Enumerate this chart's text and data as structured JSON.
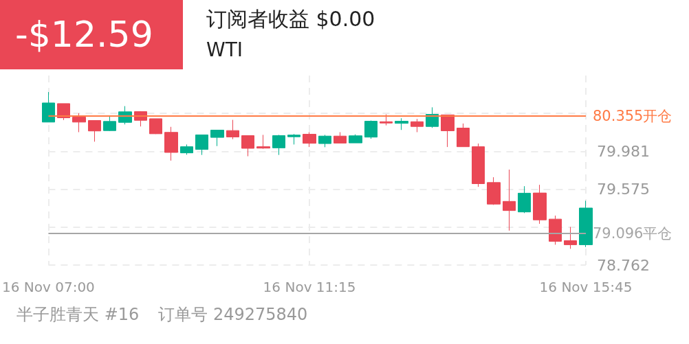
{
  "chart_data": {
    "type": "candlestick",
    "title": "WTI",
    "subtitle": "订阅者收益 $0.00",
    "annotations": [
      "-$12.59",
      "半子胜青天 #16",
      "订单号 249275840"
    ],
    "categories": [
      "16 Nov 07:00",
      null,
      null,
      null,
      null,
      null,
      null,
      null,
      null,
      null,
      null,
      null,
      null,
      null,
      null,
      null,
      null,
      "16 Nov 11:15",
      null,
      null,
      null,
      null,
      null,
      null,
      null,
      null,
      null,
      null,
      null,
      null,
      null,
      null,
      null,
      null,
      null,
      "16 Nov 15:45"
    ],
    "ohlc": [
      [
        80.294,
        80.616,
        80.294,
        80.499
      ],
      [
        80.492,
        80.492,
        80.316,
        80.34
      ],
      [
        80.347,
        80.389,
        80.186,
        80.294
      ],
      [
        80.311,
        80.311,
        80.084,
        80.199
      ],
      [
        80.203,
        80.352,
        80.199,
        80.301
      ],
      [
        80.291,
        80.465,
        80.269,
        80.404
      ],
      [
        80.406,
        80.411,
        80.247,
        80.313
      ],
      [
        80.33,
        80.33,
        80.166,
        80.169
      ],
      [
        80.184,
        80.243,
        79.881,
        79.969
      ],
      [
        79.964,
        80.054,
        79.944,
        80.03
      ],
      [
        80.001,
        80.157,
        79.942,
        80.157
      ],
      [
        80.13,
        80.208,
        80.037,
        80.208
      ],
      [
        80.203,
        80.318,
        80.111,
        80.135
      ],
      [
        80.149,
        80.149,
        79.928,
        80.013
      ],
      [
        80.03,
        80.157,
        80.008,
        80.015
      ],
      [
        80.018,
        80.157,
        79.942,
        80.149
      ],
      [
        80.137,
        80.166,
        80.054,
        80.155
      ],
      [
        80.164,
        80.186,
        80.027,
        80.067
      ],
      [
        80.064,
        80.157,
        80.025,
        80.144
      ],
      [
        80.144,
        80.186,
        80.069,
        80.069
      ],
      [
        80.071,
        80.162,
        80.071,
        80.147
      ],
      [
        80.133,
        80.311,
        80.115,
        80.303
      ],
      [
        80.298,
        80.377,
        80.259,
        80.284
      ],
      [
        80.281,
        80.335,
        80.21,
        80.303
      ],
      [
        80.298,
        80.328,
        80.186,
        80.247
      ],
      [
        80.247,
        80.452,
        80.232,
        80.377
      ],
      [
        80.371,
        80.371,
        80.027,
        80.201
      ],
      [
        80.23,
        80.279,
        80.03,
        80.03
      ],
      [
        80.03,
        80.064,
        79.6,
        79.634
      ],
      [
        79.646,
        79.703,
        79.407,
        79.415
      ],
      [
        79.444,
        79.785,
        79.131,
        79.346
      ],
      [
        79.331,
        79.607,
        79.319,
        79.532
      ],
      [
        79.534,
        79.622,
        79.204,
        79.246
      ],
      [
        79.254,
        79.292,
        78.98,
        79.016
      ],
      [
        79.023,
        79.17,
        78.936,
        78.98
      ],
      [
        78.98,
        79.451,
        78.955,
        79.373
      ]
    ],
    "colors": [
      "#00b08f",
      "#ea4755",
      "#ea4755",
      "#ea4755",
      "#00b08f",
      "#00b08f",
      "#ea4755",
      "#ea4755",
      "#ea4755",
      "#00b08f",
      "#00b08f",
      "#00b08f",
      "#ea4755",
      "#ea4755",
      "#ea4755",
      "#00b08f",
      "#00b08f",
      "#ea4755",
      "#00b08f",
      "#ea4755",
      "#00b08f",
      "#00b08f",
      "#ea4755",
      "#00b08f",
      "#ea4755",
      "#00b08f",
      "#ea4755",
      "#ea4755",
      "#ea4755",
      "#ea4755",
      "#ea4755",
      "#00b08f",
      "#ea4755",
      "#ea4755",
      "#ea4755",
      "#00b08f"
    ],
    "ylim": [
      78.762,
      80.793
    ],
    "yticks": [
      78.762,
      {
        "value": 79.169,
        "label": null
      },
      79.575,
      79.981,
      {
        "value": 80.387,
        "label": null
      }
    ],
    "ref_lines": [
      {
        "axis": "y",
        "value": 80.355,
        "label": "80.355开仓",
        "color": "#ff7a45"
      },
      {
        "axis": "y",
        "value": 79.096,
        "label": "79.096平仓",
        "color": "#a6a6a6"
      }
    ],
    "grid": true
  }
}
